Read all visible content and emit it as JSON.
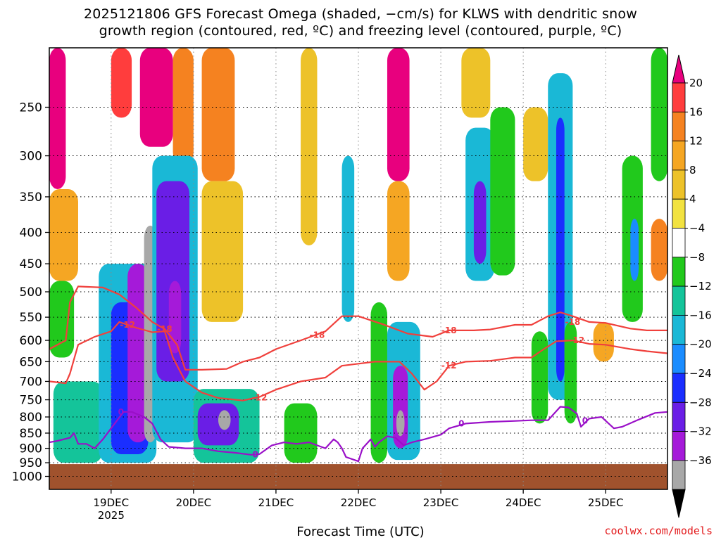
{
  "title_line1": "2025121806 GFS Forecast Omega (shaded, −cm/s) for KLWS with dendritic snow",
  "title_line2": "growth region (contoured, red, ºC) and freezing level (contoured, purple, ºC)",
  "credit": "coolwx.com/models",
  "chart_data": {
    "type": "heatmap",
    "title": "2025121806 GFS Forecast Omega (shaded, −cm/s) for KLWS with dendritic snow growth region (contoured, red, ºC) and freezing level (contoured, purple, ºC)",
    "xlabel": "Forecast Time (UTC)",
    "ylabel": "",
    "x_range_days": [
      18.25,
      25.75
    ],
    "x_ticks": [
      {
        "day": 19,
        "label": "19DEC",
        "sub": "2025"
      },
      {
        "day": 20,
        "label": "20DEC",
        "sub": ""
      },
      {
        "day": 21,
        "label": "21DEC",
        "sub": ""
      },
      {
        "day": 22,
        "label": "22DEC",
        "sub": ""
      },
      {
        "day": 23,
        "label": "23DEC",
        "sub": ""
      },
      {
        "day": 24,
        "label": "24DEC",
        "sub": ""
      },
      {
        "day": 25,
        "label": "25DEC",
        "sub": ""
      }
    ],
    "y_scale": "log-pressure",
    "y_range_hpa": [
      1050,
      200
    ],
    "y_ticks": [
      250,
      300,
      350,
      400,
      450,
      500,
      550,
      600,
      650,
      700,
      750,
      800,
      850,
      900,
      950,
      1000
    ],
    "grid": true,
    "surface_pressure_hpa": 955,
    "surface_color": "#a0522d",
    "colorbar": {
      "labels": [
        "20",
        "16",
        "12",
        "8",
        "4",
        "−4",
        "−8",
        "−12",
        "−16",
        "−20",
        "−24",
        "−28",
        "−32",
        "−36"
      ],
      "colors": [
        "#e8007e",
        "#ff3d3d",
        "#f58220",
        "#f5a623",
        "#edc229",
        "#f2e240",
        "#ffffff",
        "#21c91c",
        "#14c49a",
        "#1ab8d6",
        "#1a8cff",
        "#1a2eff",
        "#6a1ee6",
        "#a51ad9",
        "#a8a8a8",
        "#000000"
      ]
    },
    "omega_features": [
      {
        "t0": 18.25,
        "t1": 18.45,
        "p0": 200,
        "p1": 340,
        "v": 20
      },
      {
        "t0": 18.25,
        "t1": 18.6,
        "p0": 340,
        "p1": 480,
        "v": 9
      },
      {
        "t0": 19.0,
        "t1": 19.25,
        "p0": 200,
        "p1": 260,
        "v": 18
      },
      {
        "t0": 19.35,
        "t1": 19.75,
        "p0": 200,
        "p1": 290,
        "v": 20
      },
      {
        "t0": 19.75,
        "t1": 20.0,
        "p0": 200,
        "p1": 310,
        "v": 12
      },
      {
        "t0": 20.1,
        "t1": 20.5,
        "p0": 200,
        "p1": 330,
        "v": 14
      },
      {
        "t0": 20.1,
        "t1": 20.6,
        "p0": 330,
        "p1": 560,
        "v": 6
      },
      {
        "t0": 21.3,
        "t1": 21.5,
        "p0": 200,
        "p1": 420,
        "v": 6
      },
      {
        "t0": 22.35,
        "t1": 22.62,
        "p0": 200,
        "p1": 330,
        "v": 20
      },
      {
        "t0": 22.35,
        "t1": 22.62,
        "p0": 330,
        "p1": 480,
        "v": 9
      },
      {
        "t0": 23.25,
        "t1": 23.6,
        "p0": 200,
        "p1": 260,
        "v": 6
      },
      {
        "t0": 24.0,
        "t1": 24.3,
        "p0": 250,
        "p1": 330,
        "v": 6
      },
      {
        "t0": 24.85,
        "t1": 25.1,
        "p0": 560,
        "p1": 650,
        "v": 10
      },
      {
        "t0": 25.55,
        "t1": 25.75,
        "p0": 380,
        "p1": 480,
        "v": 14
      },
      {
        "t0": 18.25,
        "t1": 18.55,
        "p0": 480,
        "p1": 640,
        "v": -6
      },
      {
        "t0": 18.3,
        "t1": 18.9,
        "p0": 700,
        "p1": 950,
        "v": -9
      },
      {
        "t0": 18.85,
        "t1": 19.55,
        "p0": 450,
        "p1": 950,
        "v": -14
      },
      {
        "t0": 19.0,
        "t1": 19.45,
        "p0": 520,
        "p1": 920,
        "v": -24
      },
      {
        "t0": 19.2,
        "t1": 19.45,
        "p0": 450,
        "p1": 880,
        "v": -32
      },
      {
        "t0": 19.4,
        "t1": 19.55,
        "p0": 390,
        "p1": 880,
        "v": -36
      },
      {
        "t0": 19.5,
        "t1": 20.05,
        "p0": 300,
        "p1": 880,
        "v": -16
      },
      {
        "t0": 19.55,
        "t1": 19.95,
        "p0": 330,
        "p1": 700,
        "v": -28
      },
      {
        "t0": 19.7,
        "t1": 19.85,
        "p0": 480,
        "p1": 630,
        "v": -32
      },
      {
        "t0": 20.0,
        "t1": 20.8,
        "p0": 720,
        "p1": 950,
        "v": -12
      },
      {
        "t0": 20.05,
        "t1": 20.55,
        "p0": 760,
        "p1": 890,
        "v": -28
      },
      {
        "t0": 20.3,
        "t1": 20.45,
        "p0": 780,
        "p1": 840,
        "v": -36
      },
      {
        "t0": 21.1,
        "t1": 21.5,
        "p0": 760,
        "p1": 950,
        "v": -6
      },
      {
        "t0": 21.8,
        "t1": 21.95,
        "p0": 300,
        "p1": 560,
        "v": -16
      },
      {
        "t0": 22.15,
        "t1": 22.35,
        "p0": 520,
        "p1": 950,
        "v": -8
      },
      {
        "t0": 22.35,
        "t1": 22.75,
        "p0": 560,
        "p1": 940,
        "v": -16
      },
      {
        "t0": 22.42,
        "t1": 22.6,
        "p0": 660,
        "p1": 900,
        "v": -30
      },
      {
        "t0": 22.46,
        "t1": 22.56,
        "p0": 780,
        "p1": 860,
        "v": -36
      },
      {
        "t0": 23.3,
        "t1": 23.65,
        "p0": 270,
        "p1": 480,
        "v": -14
      },
      {
        "t0": 23.4,
        "t1": 23.55,
        "p0": 330,
        "p1": 450,
        "v": -26
      },
      {
        "t0": 23.6,
        "t1": 23.9,
        "p0": 250,
        "p1": 470,
        "v": -8
      },
      {
        "t0": 24.1,
        "t1": 24.3,
        "p0": 580,
        "p1": 820,
        "v": -8
      },
      {
        "t0": 24.3,
        "t1": 24.6,
        "p0": 220,
        "p1": 750,
        "v": -16
      },
      {
        "t0": 24.4,
        "t1": 24.5,
        "p0": 260,
        "p1": 700,
        "v": -24
      },
      {
        "t0": 24.5,
        "t1": 24.65,
        "p0": 560,
        "p1": 820,
        "v": -8
      },
      {
        "t0": 25.2,
        "t1": 25.45,
        "p0": 300,
        "p1": 560,
        "v": -8
      },
      {
        "t0": 25.3,
        "t1": 25.4,
        "p0": 380,
        "p1": 480,
        "v": -20
      },
      {
        "t0": 25.55,
        "t1": 25.75,
        "p0": 200,
        "p1": 330,
        "v": -8
      }
    ],
    "contour_labels": {
      "dgz_minus12": "-12",
      "dgz_minus18": "-18",
      "freezing": "0"
    },
    "dgz_minus18": [
      [
        18.25,
        620
      ],
      [
        18.45,
        600
      ],
      [
        18.5,
        520
      ],
      [
        18.6,
        490
      ],
      [
        18.9,
        492
      ],
      [
        19.1,
        505
      ],
      [
        19.3,
        530
      ],
      [
        19.5,
        560
      ],
      [
        19.65,
        575
      ],
      [
        19.8,
        610
      ],
      [
        19.9,
        670
      ],
      [
        20.1,
        670
      ],
      [
        20.4,
        668
      ],
      [
        20.6,
        650
      ],
      [
        20.8,
        640
      ],
      [
        21.0,
        620
      ],
      [
        21.3,
        600
      ],
      [
        21.6,
        580
      ],
      [
        21.8,
        548
      ],
      [
        22.0,
        548
      ],
      [
        22.3,
        565
      ],
      [
        22.6,
        585
      ],
      [
        22.9,
        592
      ],
      [
        23.1,
        578
      ],
      [
        23.4,
        578
      ],
      [
        23.6,
        576
      ],
      [
        23.9,
        566
      ],
      [
        24.1,
        566
      ],
      [
        24.3,
        548
      ],
      [
        24.45,
        540
      ],
      [
        24.6,
        548
      ],
      [
        24.8,
        560
      ],
      [
        25.0,
        562
      ],
      [
        25.3,
        574
      ],
      [
        25.5,
        578
      ],
      [
        25.75,
        578
      ]
    ],
    "dgz_minus12": [
      [
        18.25,
        700
      ],
      [
        18.45,
        705
      ],
      [
        18.5,
        680
      ],
      [
        18.6,
        610
      ],
      [
        18.8,
        592
      ],
      [
        19.0,
        580
      ],
      [
        19.1,
        560
      ],
      [
        19.3,
        572
      ],
      [
        19.5,
        582
      ],
      [
        19.65,
        580
      ],
      [
        19.75,
        640
      ],
      [
        19.9,
        700
      ],
      [
        20.1,
        730
      ],
      [
        20.3,
        745
      ],
      [
        20.6,
        752
      ],
      [
        20.8,
        742
      ],
      [
        21.0,
        722
      ],
      [
        21.3,
        700
      ],
      [
        21.6,
        690
      ],
      [
        21.8,
        660
      ],
      [
        22.0,
        655
      ],
      [
        22.2,
        650
      ],
      [
        22.5,
        650
      ],
      [
        22.65,
        680
      ],
      [
        22.8,
        722
      ],
      [
        22.95,
        700
      ],
      [
        23.1,
        660
      ],
      [
        23.3,
        650
      ],
      [
        23.6,
        648
      ],
      [
        23.9,
        640
      ],
      [
        24.1,
        640
      ],
      [
        24.25,
        620
      ],
      [
        24.4,
        602
      ],
      [
        24.6,
        600
      ],
      [
        24.8,
        608
      ],
      [
        25.0,
        610
      ],
      [
        25.3,
        620
      ],
      [
        25.5,
        625
      ],
      [
        25.75,
        630
      ]
    ],
    "freezing_level": [
      [
        18.25,
        880
      ],
      [
        18.35,
        875
      ],
      [
        18.5,
        865
      ],
      [
        18.55,
        850
      ],
      [
        18.6,
        885
      ],
      [
        18.7,
        885
      ],
      [
        18.8,
        900
      ],
      [
        18.9,
        870
      ],
      [
        19.0,
        835
      ],
      [
        19.15,
        785
      ],
      [
        19.25,
        785
      ],
      [
        19.4,
        800
      ],
      [
        19.5,
        820
      ],
      [
        19.6,
        870
      ],
      [
        19.7,
        895
      ],
      [
        19.9,
        900
      ],
      [
        20.1,
        900
      ],
      [
        20.3,
        910
      ],
      [
        20.5,
        915
      ],
      [
        20.7,
        922
      ],
      [
        20.8,
        920
      ],
      [
        20.95,
        890
      ],
      [
        21.1,
        880
      ],
      [
        21.25,
        885
      ],
      [
        21.4,
        880
      ],
      [
        21.55,
        895
      ],
      [
        21.6,
        900
      ],
      [
        21.7,
        870
      ],
      [
        21.75,
        880
      ],
      [
        21.8,
        900
      ],
      [
        21.85,
        930
      ],
      [
        22.0,
        945
      ],
      [
        22.05,
        900
      ],
      [
        22.1,
        885
      ],
      [
        22.15,
        870
      ],
      [
        22.2,
        895
      ],
      [
        22.25,
        880
      ],
      [
        22.35,
        860
      ],
      [
        22.45,
        865
      ],
      [
        22.55,
        890
      ],
      [
        22.65,
        880
      ],
      [
        22.8,
        870
      ],
      [
        23.0,
        855
      ],
      [
        23.1,
        835
      ],
      [
        23.3,
        820
      ],
      [
        23.6,
        815
      ],
      [
        23.9,
        812
      ],
      [
        24.1,
        810
      ],
      [
        24.3,
        810
      ],
      [
        24.45,
        770
      ],
      [
        24.55,
        772
      ],
      [
        24.65,
        790
      ],
      [
        24.7,
        830
      ],
      [
        24.8,
        805
      ],
      [
        24.95,
        800
      ],
      [
        25.1,
        835
      ],
      [
        25.2,
        830
      ],
      [
        25.4,
        808
      ],
      [
        25.6,
        788
      ],
      [
        25.75,
        785
      ]
    ]
  }
}
